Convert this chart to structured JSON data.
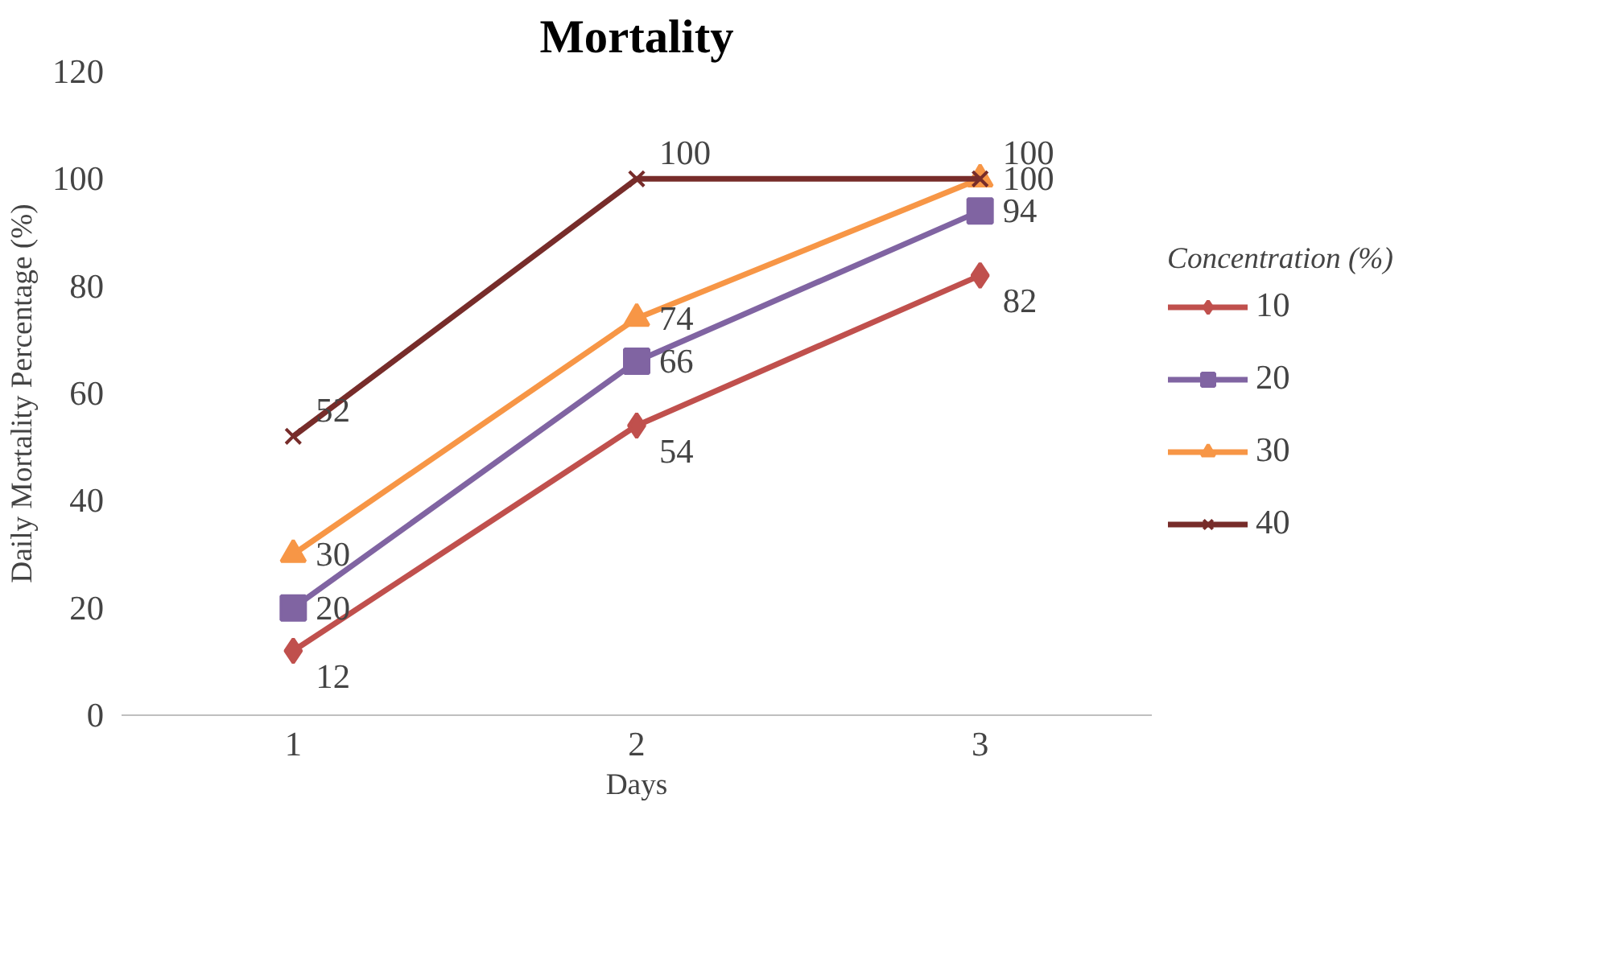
{
  "chart_data": {
    "type": "line",
    "title": "Mortality",
    "xlabel": "Days",
    "ylabel": "Daily Mortality Percentage (%)",
    "legend_title": "Concentration (%)",
    "legend": "right",
    "x": [
      1,
      2,
      3
    ],
    "xlim": [
      0.5,
      3.5
    ],
    "xticks": [
      1,
      2,
      3
    ],
    "ylim": [
      0,
      120
    ],
    "yticks": [
      0,
      20,
      40,
      60,
      80,
      100,
      120
    ],
    "grid": false,
    "data_labels": true,
    "line_style": "solid",
    "series": [
      {
        "name": "10",
        "color": "#c0504d",
        "marker": "diamond",
        "values": [
          12,
          54,
          82
        ]
      },
      {
        "name": "20",
        "color": "#8064a2",
        "marker": "square",
        "values": [
          20,
          66,
          94
        ]
      },
      {
        "name": "30",
        "color": "#f79646",
        "marker": "triangle",
        "values": [
          30,
          74,
          100
        ]
      },
      {
        "name": "40",
        "color": "#772c2a",
        "marker": "cross",
        "values": [
          52,
          100,
          100
        ]
      }
    ]
  }
}
